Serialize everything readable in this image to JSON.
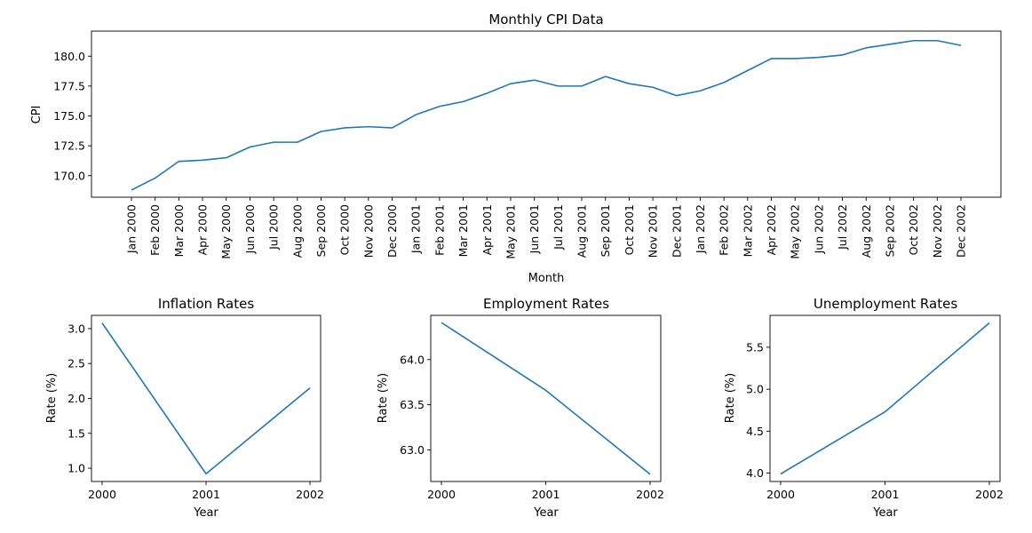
{
  "chart_data": [
    {
      "id": "cpi",
      "type": "line",
      "title": "Monthly CPI Data",
      "xlabel": "Month",
      "ylabel": "CPI",
      "ylim": [
        168.2,
        182.1
      ],
      "yticks": [
        "170.0",
        "172.5",
        "175.0",
        "177.5",
        "180.0"
      ],
      "ytick_values": [
        170.0,
        172.5,
        175.0,
        177.5,
        180.0
      ],
      "grid": false,
      "line_color": "#1f77b4",
      "categories": [
        "Jan 2000",
        "Feb 2000",
        "Mar 2000",
        "Apr 2000",
        "May 2000",
        "Jun 2000",
        "Jul 2000",
        "Aug 2000",
        "Sep 2000",
        "Oct 2000",
        "Nov 2000",
        "Dec 2000",
        "Jan 2001",
        "Feb 2001",
        "Mar 2001",
        "Apr 2001",
        "May 2001",
        "Jun 2001",
        "Jul 2001",
        "Aug 2001",
        "Sep 2001",
        "Oct 2001",
        "Nov 2001",
        "Dec 2001",
        "Jan 2002",
        "Feb 2002",
        "Mar 2002",
        "Apr 2002",
        "May 2002",
        "Jun 2002",
        "Jul 2002",
        "Aug 2002",
        "Sep 2002",
        "Oct 2002",
        "Nov 2002",
        "Dec 2002"
      ],
      "values": [
        168.8,
        169.8,
        171.2,
        171.3,
        171.5,
        172.4,
        172.8,
        172.8,
        173.7,
        174.0,
        174.1,
        174.0,
        175.1,
        175.8,
        176.2,
        176.9,
        177.7,
        178.0,
        177.5,
        177.5,
        178.3,
        177.7,
        177.4,
        176.7,
        177.1,
        177.8,
        178.8,
        179.8,
        179.8,
        179.9,
        180.1,
        180.7,
        181.0,
        181.3,
        181.3,
        180.9
      ]
    },
    {
      "id": "inflation",
      "type": "line",
      "title": "Inflation Rates",
      "xlabel": "Year",
      "ylabel": "Rate (%)",
      "x": [
        "2000",
        "2001",
        "2002"
      ],
      "values": [
        3.08,
        0.92,
        2.15
      ],
      "ylim": [
        0.81,
        3.19
      ],
      "yticks": [
        "1.0",
        "1.5",
        "2.0",
        "2.5",
        "3.0"
      ],
      "ytick_values": [
        1.0,
        1.5,
        2.0,
        2.5,
        3.0
      ],
      "grid": false,
      "line_color": "#1f77b4"
    },
    {
      "id": "employment",
      "type": "line",
      "title": "Employment Rates",
      "xlabel": "Year",
      "ylabel": "Rate (%)",
      "x": [
        "2000",
        "2001",
        "2002"
      ],
      "values": [
        64.41,
        63.66,
        62.73
      ],
      "ylim": [
        62.65,
        64.49
      ],
      "yticks": [
        "63.0",
        "63.5",
        "64.0"
      ],
      "ytick_values": [
        63.0,
        63.5,
        64.0
      ],
      "grid": false,
      "line_color": "#1f77b4"
    },
    {
      "id": "unemployment",
      "type": "line",
      "title": "Unemployment Rates",
      "xlabel": "Year",
      "ylabel": "Rate (%)",
      "x": [
        "2000",
        "2001",
        "2002"
      ],
      "values": [
        3.99,
        4.73,
        5.79
      ],
      "ylim": [
        3.9,
        5.88
      ],
      "yticks": [
        "4.0",
        "4.5",
        "5.0",
        "5.5"
      ],
      "ytick_values": [
        4.0,
        4.5,
        5.0,
        5.5
      ],
      "grid": false,
      "line_color": "#1f77b4"
    }
  ]
}
